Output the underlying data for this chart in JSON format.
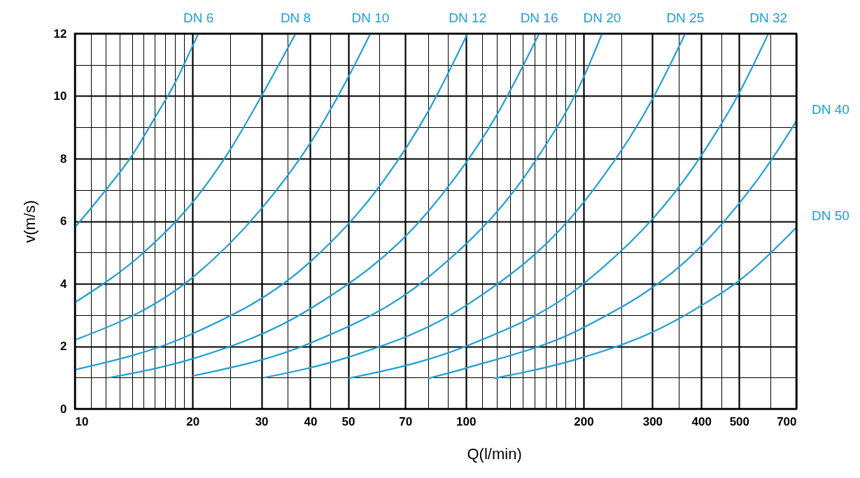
{
  "chart_data": {
    "type": "line",
    "xlabel": "Q(l/min)",
    "ylabel": "v(m/s)",
    "log": "x",
    "grid": true,
    "legend": false,
    "marker": "none",
    "line_style": "solid",
    "xlim": [
      10,
      700
    ],
    "ylim": [
      0,
      12
    ],
    "xticks": [
      10,
      {
        "value": 11,
        "label": null
      },
      {
        "value": 12,
        "label": null
      },
      {
        "value": 13,
        "label": null
      },
      {
        "value": 14,
        "label": null
      },
      {
        "value": 15,
        "label": null
      },
      {
        "value": 16,
        "label": null
      },
      {
        "value": 17,
        "label": null
      },
      {
        "value": 18,
        "label": null
      },
      {
        "value": 19,
        "label": null
      },
      20,
      {
        "value": 25,
        "label": null
      },
      30,
      {
        "value": 35,
        "label": null
      },
      40,
      {
        "value": 45,
        "label": null
      },
      50,
      {
        "value": 60,
        "label": null
      },
      70,
      {
        "value": 80,
        "label": null
      },
      {
        "value": 90,
        "label": null
      },
      100,
      {
        "value": 110,
        "label": null
      },
      {
        "value": 120,
        "label": null
      },
      {
        "value": 130,
        "label": null
      },
      {
        "value": 140,
        "label": null
      },
      {
        "value": 150,
        "label": null
      },
      {
        "value": 160,
        "label": null
      },
      {
        "value": 170,
        "label": null
      },
      {
        "value": 180,
        "label": null
      },
      {
        "value": 190,
        "label": null
      },
      200,
      {
        "value": 250,
        "label": null
      },
      300,
      {
        "value": 350,
        "label": null
      },
      400,
      {
        "value": 450,
        "label": null
      },
      500,
      {
        "value": 600,
        "label": null
      },
      700
    ],
    "yticks": [
      0,
      {
        "value": 1,
        "label": null
      },
      2,
      {
        "value": 3,
        "label": null
      },
      4,
      {
        "value": 5,
        "label": null
      },
      6,
      {
        "value": 7,
        "label": null
      },
      8,
      {
        "value": 9,
        "label": null
      },
      10,
      {
        "value": 11,
        "label": null
      },
      12
    ],
    "series": [
      {
        "name": "DN 6",
        "color": "#1f9ed8",
        "x": [
          10,
          12,
          14,
          16,
          18,
          20,
          20.7
        ],
        "values": [
          5.8,
          7.0,
          8.1,
          9.3,
          10.4,
          11.6,
          12
        ]
      },
      {
        "name": "DN 8",
        "color": "#1f9ed8",
        "x": [
          10,
          15,
          20,
          25,
          30,
          36.7
        ],
        "values": [
          3.4,
          5.0,
          6.6,
          8.3,
          10.0,
          12
        ]
      },
      {
        "name": "DN 10",
        "color": "#1f9ed8",
        "x": [
          10,
          20,
          30,
          40,
          50,
          57
        ],
        "values": [
          2.2,
          4.2,
          6.4,
          8.5,
          10.6,
          12
        ]
      },
      {
        "name": "DN 12",
        "color": "#1f9ed8",
        "x": [
          10,
          20,
          40,
          60,
          80,
          101
        ],
        "values": [
          1.25,
          2.4,
          4.7,
          7.1,
          9.5,
          12
        ]
      },
      {
        "name": "DN 16",
        "color": "#1f9ed8",
        "x": [
          12.3,
          20,
          40,
          80,
          120,
          154
        ],
        "values": [
          1.0,
          1.6,
          3.2,
          6.3,
          9.4,
          12
        ]
      },
      {
        "name": "DN 20",
        "color": "#1f9ed8",
        "x": [
          20,
          40,
          80,
          150,
          200,
          223
        ],
        "values": [
          1.05,
          2.1,
          4.2,
          7.9,
          10.6,
          12
        ]
      },
      {
        "name": "DN 25",
        "color": "#1f9ed8",
        "x": [
          30.6,
          50,
          100,
          200,
          300,
          364
        ],
        "values": [
          1.0,
          1.65,
          3.3,
          6.6,
          9.9,
          12
        ]
      },
      {
        "name": "DN 32",
        "color": "#1f9ed8",
        "x": [
          50,
          100,
          200,
          400,
          500,
          594
        ],
        "values": [
          0.97,
          2.0,
          4.0,
          8.1,
          10.1,
          12
        ]
      },
      {
        "name": "DN 40",
        "color": "#1f9ed8",
        "x": [
          80,
          100,
          200,
          400,
          600,
          700
        ],
        "values": [
          0.97,
          1.3,
          2.6,
          5.2,
          7.9,
          9.2
        ]
      },
      {
        "name": "DN 50",
        "color": "#1f9ed8",
        "x": [
          118,
          200,
          300,
          400,
          500,
          700
        ],
        "values": [
          0.97,
          1.65,
          2.45,
          3.3,
          4.1,
          5.8
        ]
      }
    ]
  }
}
